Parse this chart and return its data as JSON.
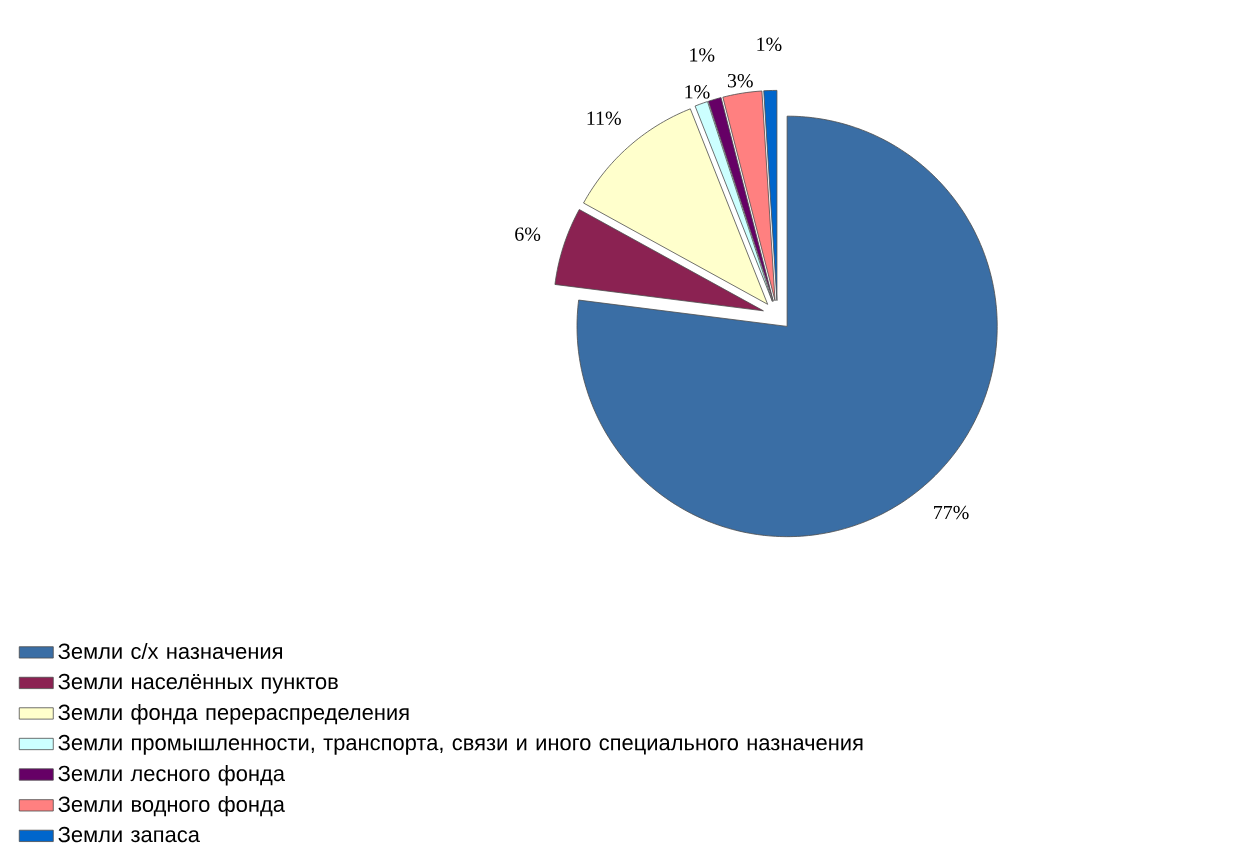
{
  "chart_data": {
    "type": "pie",
    "categories": [
      "Земли с/х назначения",
      "Земли населённых пунктов",
      "Земли фонда перераспределения",
      "Земли промышленности, транспорта, связи и иного специального назначения",
      "Земли лесного фонда",
      "Земли водного фонда",
      "Земли запаса"
    ],
    "values": [
      77,
      6,
      11,
      1,
      1,
      3,
      1
    ],
    "colors": [
      "#3a6ea5",
      "#8b2252",
      "#ffffcc",
      "#ccffff",
      "#660066",
      "#ff8080",
      "#0066cc"
    ],
    "value_labels": [
      "77%",
      "6%",
      "11%",
      "1%",
      "1%",
      "3%",
      "1%"
    ],
    "legend": "bottom left"
  }
}
